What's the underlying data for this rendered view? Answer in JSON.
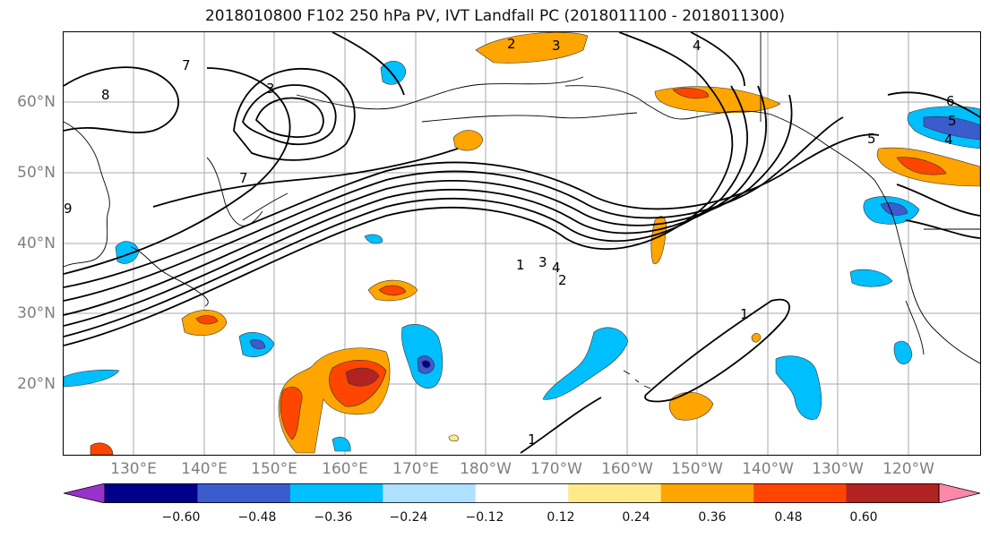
{
  "title": "2018010800 F102 250 hPa PV, IVT Landfall PC (2018011100 - 2018011300)",
  "latitude_labels": [
    "60°N",
    "50°N",
    "40°N",
    "30°N",
    "20°N"
  ],
  "longitude_labels": [
    "130°E",
    "140°E",
    "150°E",
    "160°E",
    "170°E",
    "180°W",
    "170°W",
    "160°W",
    "150°W",
    "140°W",
    "130°W",
    "120°W"
  ],
  "colorbar": {
    "tick_labels": [
      "−0.60",
      "−0.48",
      "−0.36",
      "−0.24",
      "−0.12",
      "0.12",
      "0.24",
      "0.36",
      "0.48",
      "0.60"
    ],
    "colors": [
      "#9932cc",
      "#00008b",
      "#3a5ccc",
      "#00bfff",
      "#b0e0ff",
      "#ffffff",
      "#ffe98a",
      "#ffa500",
      "#ff4500",
      "#b22222",
      "#ff88aa"
    ]
  },
  "contour_labels": [
    "2",
    "3",
    "4",
    "7",
    "8",
    "3",
    "7",
    "5",
    "5",
    "4",
    "6",
    "9",
    "1",
    "3",
    "4",
    "2",
    "1",
    "1"
  ]
}
